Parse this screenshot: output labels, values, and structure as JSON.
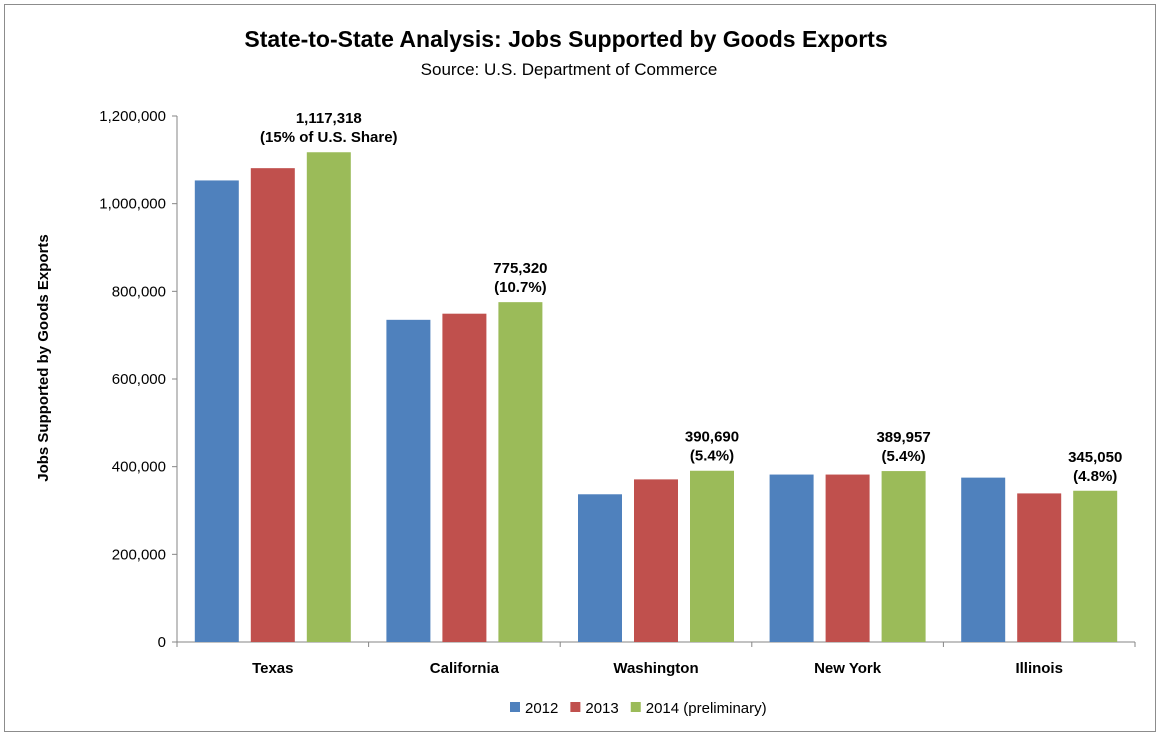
{
  "chart_data": {
    "type": "bar",
    "title": "State-to-State Analysis: Jobs Supported by Goods Exports",
    "subtitle": "Source: U.S. Department  of Commerce",
    "ylabel": "Jobs Supported  by Goods Exports",
    "xlabel": "",
    "ylim": [
      0,
      1200000
    ],
    "yticks": [
      0,
      200000,
      400000,
      600000,
      800000,
      1000000,
      1200000
    ],
    "ytick_labels": [
      "0",
      "200,000",
      "400,000",
      "600,000",
      "800,000",
      "1,000,000",
      "1,200,000"
    ],
    "categories": [
      "Texas",
      "California",
      "Washington",
      "New York",
      "Illinois"
    ],
    "series": [
      {
        "name": "2012",
        "color": "#4f81bd",
        "values": [
          1053000,
          735000,
          337000,
          382000,
          375000
        ]
      },
      {
        "name": "2013",
        "color": "#c0504d",
        "values": [
          1081000,
          749000,
          371000,
          382000,
          339000
        ]
      },
      {
        "name": "2014 (preliminary)",
        "color": "#9bbb59",
        "values": [
          1117318,
          775320,
          390690,
          389957,
          345050
        ]
      }
    ],
    "annotations": [
      {
        "category": "Texas",
        "series": "2014 (preliminary)",
        "lines": [
          "1,117,318",
          "(15% of U.S. Share)"
        ]
      },
      {
        "category": "California",
        "series": "2014 (preliminary)",
        "lines": [
          "775,320",
          "(10.7%)"
        ]
      },
      {
        "category": "Washington",
        "series": "2014 (preliminary)",
        "lines": [
          "390,690",
          "(5.4%)"
        ]
      },
      {
        "category": "New York",
        "series": "2014 (preliminary)",
        "lines": [
          "389,957",
          "(5.4%)"
        ]
      },
      {
        "category": "Illinois",
        "series": "2014 (preliminary)",
        "lines": [
          "345,050",
          "(4.8%)"
        ]
      }
    ],
    "legend_position": "bottom",
    "grid": false
  }
}
